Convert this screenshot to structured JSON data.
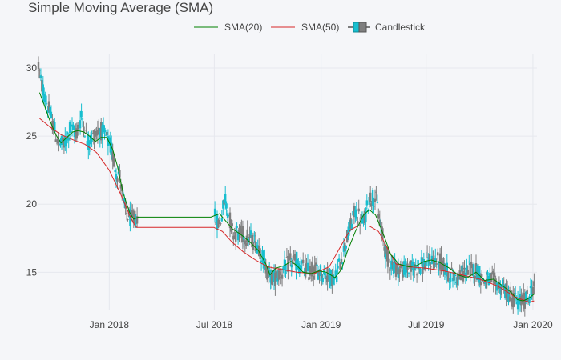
{
  "chart_data": {
    "type": "line",
    "title": "Simple Moving Average (SMA)",
    "xlabel": "",
    "ylabel": "",
    "x_range": [
      "2017-09-01",
      "2020-01-08"
    ],
    "x_ticks": [
      {
        "date": "2018-01-01",
        "label": "Jan 2018"
      },
      {
        "date": "2018-07-01",
        "label": "Jul 2018"
      },
      {
        "date": "2019-01-01",
        "label": "Jan 2019"
      },
      {
        "date": "2019-07-01",
        "label": "Jul 2019"
      },
      {
        "date": "2020-01-01",
        "label": "Jan 2020"
      }
    ],
    "ylim": [
      12.2,
      31.0
    ],
    "y_ticks": [
      15,
      20,
      25,
      30
    ],
    "grid": true,
    "legend_position": "top-center",
    "colors": {
      "increasing": "#17becf",
      "decreasing": "#7f7f7f",
      "sma20": "#008000",
      "sma50": "#d62728",
      "grid": "#e6e8ee",
      "background": "#f5f6f9"
    },
    "series": [
      {
        "name": "SMA(20)",
        "style": "line",
        "points": [
          [
            "2017-09-03",
            28.2
          ],
          [
            "2017-09-10",
            27.4
          ],
          [
            "2017-09-20",
            26.2
          ],
          [
            "2017-10-01",
            25.1
          ],
          [
            "2017-10-10",
            24.5
          ],
          [
            "2017-10-20",
            24.9
          ],
          [
            "2017-10-30",
            25.3
          ],
          [
            "2017-11-08",
            25.4
          ],
          [
            "2017-11-18",
            25.3
          ],
          [
            "2017-11-28",
            25.0
          ],
          [
            "2017-12-08",
            24.6
          ],
          [
            "2017-12-18",
            24.9
          ],
          [
            "2017-12-28",
            24.9
          ],
          [
            "2018-01-07",
            24.0
          ],
          [
            "2018-01-15",
            22.8
          ],
          [
            "2018-01-25",
            20.8
          ],
          [
            "2018-02-05",
            19.4
          ],
          [
            "2018-02-12",
            18.9
          ],
          [
            "2018-02-20",
            19.05
          ],
          [
            "2018-06-25",
            19.05
          ],
          [
            "2018-07-10",
            19.3
          ],
          [
            "2018-07-20",
            18.8
          ],
          [
            "2018-08-01",
            18.2
          ],
          [
            "2018-08-15",
            17.8
          ],
          [
            "2018-09-01",
            17.2
          ],
          [
            "2018-09-15",
            16.6
          ],
          [
            "2018-09-28",
            15.6
          ],
          [
            "2018-10-05",
            14.8
          ],
          [
            "2018-10-15",
            15.3
          ],
          [
            "2018-10-30",
            15.5
          ],
          [
            "2018-11-10",
            15.8
          ],
          [
            "2018-11-20",
            15.5
          ],
          [
            "2018-12-01",
            15.0
          ],
          [
            "2018-12-15",
            14.9
          ],
          [
            "2018-12-28",
            15.1
          ],
          [
            "2019-01-10",
            15.0
          ],
          [
            "2019-01-25",
            14.6
          ],
          [
            "2019-02-05",
            15.2
          ],
          [
            "2019-02-15",
            16.5
          ],
          [
            "2019-03-01",
            18.0
          ],
          [
            "2019-03-15",
            19.2
          ],
          [
            "2019-03-25",
            19.6
          ],
          [
            "2019-04-05",
            19.2
          ],
          [
            "2019-04-20",
            17.6
          ],
          [
            "2019-05-01",
            16.3
          ],
          [
            "2019-05-15",
            15.6
          ],
          [
            "2019-06-01",
            15.4
          ],
          [
            "2019-06-15",
            15.5
          ],
          [
            "2019-06-28",
            15.8
          ],
          [
            "2019-07-10",
            15.9
          ],
          [
            "2019-07-25",
            15.7
          ],
          [
            "2019-08-10",
            15.3
          ],
          [
            "2019-08-25",
            14.8
          ],
          [
            "2019-09-10",
            14.6
          ],
          [
            "2019-09-25",
            15.0
          ],
          [
            "2019-10-10",
            14.4
          ],
          [
            "2019-10-25",
            14.5
          ],
          [
            "2019-11-10",
            14.0
          ],
          [
            "2019-11-25",
            13.5
          ],
          [
            "2019-12-05",
            13.0
          ],
          [
            "2019-12-15",
            12.9
          ],
          [
            "2019-12-25",
            13.1
          ],
          [
            "2020-01-03",
            13.4
          ]
        ]
      },
      {
        "name": "SMA(50)",
        "style": "line",
        "points": [
          [
            "2017-09-03",
            26.3
          ],
          [
            "2017-09-20",
            25.7
          ],
          [
            "2017-10-10",
            25.1
          ],
          [
            "2017-11-01",
            24.7
          ],
          [
            "2017-11-20",
            24.4
          ],
          [
            "2017-12-10",
            23.8
          ],
          [
            "2018-01-01",
            22.5
          ],
          [
            "2018-01-20",
            20.8
          ],
          [
            "2018-02-05",
            19.2
          ],
          [
            "2018-02-12",
            18.6
          ],
          [
            "2018-02-17",
            18.3
          ],
          [
            "2018-06-30",
            18.3
          ],
          [
            "2018-07-15",
            18.0
          ],
          [
            "2018-08-01",
            17.2
          ],
          [
            "2018-08-20",
            16.5
          ],
          [
            "2018-09-10",
            15.9
          ],
          [
            "2018-10-01",
            15.4
          ],
          [
            "2018-10-25",
            15.2
          ],
          [
            "2018-11-20",
            15.0
          ],
          [
            "2018-12-20",
            14.9
          ],
          [
            "2019-01-15",
            15.4
          ],
          [
            "2019-02-05",
            17.0
          ],
          [
            "2019-02-20",
            18.1
          ],
          [
            "2019-03-05",
            18.4
          ],
          [
            "2019-03-25",
            18.4
          ],
          [
            "2019-04-10",
            18.0
          ],
          [
            "2019-04-25",
            16.8
          ],
          [
            "2019-05-10",
            15.6
          ],
          [
            "2019-06-01",
            15.4
          ],
          [
            "2019-07-01",
            15.3
          ],
          [
            "2019-08-01",
            15.1
          ],
          [
            "2019-09-01",
            14.8
          ],
          [
            "2019-10-01",
            14.5
          ],
          [
            "2019-11-01",
            14.0
          ],
          [
            "2019-12-01",
            13.2
          ],
          [
            "2019-12-25",
            12.8
          ],
          [
            "2020-01-03",
            12.9
          ]
        ]
      },
      {
        "name": "Candlestick",
        "style": "candlestick",
        "segments": [
          {
            "start": "2017-09-01",
            "end": "2018-02-18",
            "step_days": 2,
            "anchors": [
              [
                "2017-09-01",
                30.2
              ],
              [
                "2017-09-05",
                29.0
              ],
              [
                "2017-09-15",
                27.5
              ],
              [
                "2017-09-25",
                26.0
              ],
              [
                "2017-10-05",
                24.5
              ],
              [
                "2017-10-15",
                24.3
              ],
              [
                "2017-10-25",
                25.5
              ],
              [
                "2017-11-05",
                25.2
              ],
              [
                "2017-11-15",
                26.5
              ],
              [
                "2017-11-25",
                24.5
              ],
              [
                "2017-12-05",
                25.0
              ],
              [
                "2017-12-15",
                25.5
              ],
              [
                "2017-12-25",
                25.0
              ],
              [
                "2018-01-05",
                24.0
              ],
              [
                "2018-01-12",
                22.5
              ],
              [
                "2018-01-20",
                22.0
              ],
              [
                "2018-01-28",
                19.5
              ],
              [
                "2018-02-05",
                19.0
              ],
              [
                "2018-02-12",
                18.8
              ],
              [
                "2018-02-18",
                19.2
              ]
            ]
          },
          {
            "start": "2018-07-02",
            "end": "2020-01-03",
            "step_days": 2,
            "anchors": [
              [
                "2018-07-02",
                19.0
              ],
              [
                "2018-07-10",
                18.5
              ],
              [
                "2018-07-20",
                20.5
              ],
              [
                "2018-08-01",
                18.0
              ],
              [
                "2018-08-15",
                17.8
              ],
              [
                "2018-09-01",
                17.5
              ],
              [
                "2018-09-15",
                17.0
              ],
              [
                "2018-10-01",
                15.0
              ],
              [
                "2018-10-10",
                14.5
              ],
              [
                "2018-10-25",
                15.0
              ],
              [
                "2018-11-10",
                15.8
              ],
              [
                "2018-11-25",
                15.5
              ],
              [
                "2018-12-10",
                15.0
              ],
              [
                "2018-12-25",
                15.2
              ],
              [
                "2019-01-10",
                14.8
              ],
              [
                "2019-01-25",
                14.5
              ],
              [
                "2019-02-05",
                16.0
              ],
              [
                "2019-02-15",
                17.5
              ],
              [
                "2019-03-01",
                19.5
              ],
              [
                "2019-03-15",
                18.5
              ],
              [
                "2019-03-25",
                20.5
              ],
              [
                "2019-04-05",
                20.5
              ],
              [
                "2019-04-15",
                18.0
              ],
              [
                "2019-04-25",
                16.0
              ],
              [
                "2019-05-10",
                15.3
              ],
              [
                "2019-05-25",
                15.2
              ],
              [
                "2019-06-10",
                15.3
              ],
              [
                "2019-06-25",
                15.5
              ],
              [
                "2019-07-10",
                15.9
              ],
              [
                "2019-07-25",
                15.8
              ],
              [
                "2019-08-10",
                14.8
              ],
              [
                "2019-08-25",
                14.6
              ],
              [
                "2019-09-10",
                15.2
              ],
              [
                "2019-09-25",
                15.2
              ],
              [
                "2019-10-10",
                14.3
              ],
              [
                "2019-10-25",
                14.4
              ],
              [
                "2019-11-10",
                13.8
              ],
              [
                "2019-11-25",
                13.2
              ],
              [
                "2019-12-05",
                12.8
              ],
              [
                "2019-12-15",
                12.9
              ],
              [
                "2019-12-25",
                13.2
              ],
              [
                "2020-01-03",
                14.2
              ]
            ]
          }
        ]
      }
    ]
  }
}
